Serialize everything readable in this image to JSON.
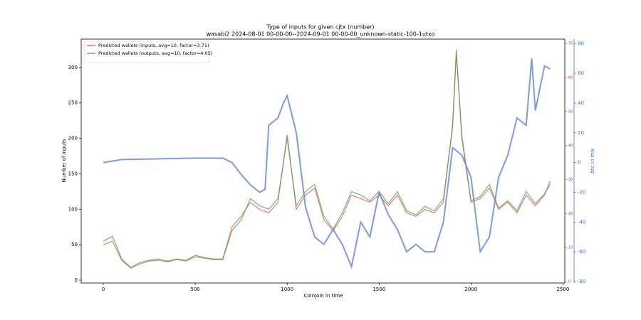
{
  "chart_data": {
    "type": "line",
    "title": "Type of inputs for given cjtx (number)",
    "subtitle": "wasabi2 2024-08-01 00-00-00--2024-09-01 00-00-00_unknown-static-100-1utxo",
    "x_label": "Coinjoin in time",
    "y_label": "Number of inputs",
    "y2_label": "btc in mix",
    "xlim": [
      -120,
      2510
    ],
    "xticks": [
      0,
      500,
      1000,
      1500,
      2000,
      2500
    ],
    "ylim": [
      -4,
      340
    ],
    "yticks": [
      0,
      50,
      100,
      150,
      200,
      250,
      300
    ],
    "y2lim": [
      -81,
      83
    ],
    "y2ticks": [
      -80,
      -60,
      -40,
      -20,
      0,
      20,
      40,
      60,
      80
    ],
    "y3lim": [
      -0.4,
      71.3
    ],
    "y3ticks": [
      0,
      10,
      20,
      30,
      40,
      50,
      60,
      70
    ],
    "y3color": "#d62728",
    "y2color": "#4169e1",
    "legend": "upper left",
    "grid": false,
    "series": [
      {
        "name": "Predicted wallets (inputs, avg=10, factor=3.71)",
        "color": "#e8474a",
        "x": [
          0,
          50,
          100,
          150,
          200,
          250,
          300,
          350,
          400,
          450,
          500,
          550,
          600,
          650,
          700,
          750,
          800,
          850,
          900,
          950,
          1000,
          1050,
          1100,
          1150,
          1200,
          1250,
          1300,
          1350,
          1400,
          1450,
          1500,
          1550,
          1600,
          1650,
          1700,
          1750,
          1800,
          1850,
          1900,
          1920,
          1950,
          2000,
          2050,
          2100,
          2150,
          2200,
          2250,
          2300,
          2350,
          2400,
          2430
        ],
        "values": [
          55,
          62,
          30,
          18,
          25,
          28,
          30,
          27,
          30,
          28,
          35,
          32,
          30,
          30,
          75,
          90,
          110,
          100,
          95,
          110,
          205,
          100,
          120,
          130,
          85,
          70,
          90,
          120,
          115,
          110,
          120,
          105,
          120,
          95,
          90,
          100,
          95,
          110,
          220,
          325,
          200,
          110,
          115,
          130,
          100,
          110,
          95,
          120,
          105,
          120,
          140
        ]
      },
      {
        "name": "Predicted wallets (outputs, avg=10, factor=4.05)",
        "color": "#3aa64a",
        "x": [
          0,
          50,
          100,
          150,
          200,
          250,
          300,
          350,
          400,
          450,
          500,
          550,
          600,
          650,
          700,
          750,
          800,
          850,
          900,
          950,
          1000,
          1050,
          1100,
          1150,
          1200,
          1250,
          1300,
          1350,
          1400,
          1450,
          1500,
          1550,
          1600,
          1650,
          1700,
          1750,
          1800,
          1850,
          1900,
          1920,
          1950,
          2000,
          2050,
          2100,
          2150,
          2200,
          2250,
          2300,
          2350,
          2400,
          2430
        ],
        "values": [
          50,
          55,
          28,
          17,
          23,
          27,
          28,
          26,
          29,
          27,
          33,
          31,
          29,
          29,
          70,
          85,
          115,
          105,
          100,
          115,
          200,
          105,
          125,
          135,
          90,
          72,
          95,
          125,
          120,
          112,
          125,
          108,
          125,
          98,
          92,
          104,
          98,
          115,
          215,
          320,
          205,
          112,
          118,
          135,
          102,
          112,
          98,
          125,
          108,
          122,
          135
        ]
      },
      {
        "name": "btc in mix",
        "color": "#6f8fe0",
        "axis": "y2",
        "x": [
          0,
          100,
          500,
          650,
          700,
          750,
          800,
          850,
          880,
          900,
          950,
          980,
          1000,
          1050,
          1100,
          1150,
          1200,
          1250,
          1300,
          1350,
          1400,
          1450,
          1500,
          1550,
          1600,
          1650,
          1700,
          1750,
          1800,
          1850,
          1900,
          1950,
          2000,
          2050,
          2100,
          2150,
          2200,
          2250,
          2300,
          2330,
          2350,
          2400,
          2430
        ],
        "values": [
          0,
          2,
          3,
          3,
          0,
          -8,
          -15,
          -20,
          -18,
          25,
          30,
          40,
          45,
          20,
          -30,
          -50,
          -55,
          -45,
          -55,
          -70,
          -40,
          -50,
          -20,
          -35,
          -45,
          -60,
          -55,
          -60,
          -60,
          -40,
          10,
          5,
          -10,
          -60,
          -50,
          -10,
          5,
          30,
          25,
          70,
          35,
          65,
          63
        ]
      }
    ]
  }
}
